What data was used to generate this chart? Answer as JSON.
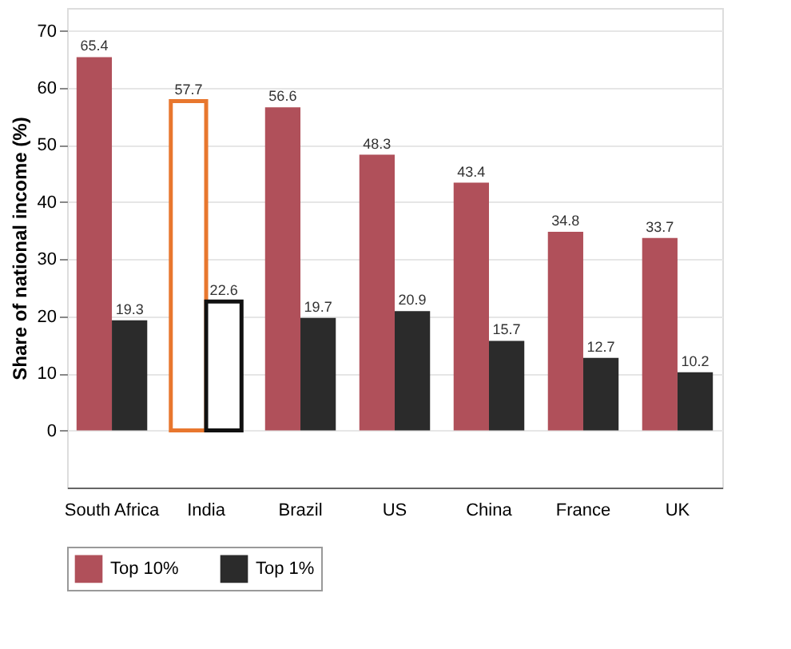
{
  "chart_data": {
    "type": "bar",
    "ylabel": "Share of national income (%)",
    "categories": [
      "South Africa",
      "India",
      "Brazil",
      "US",
      "China",
      "France",
      "UK"
    ],
    "series": [
      {
        "name": "Top 10%",
        "color": "#b0505a",
        "colors": [
          "#b0505a",
          "#e8772e",
          "#b0505a",
          "#b0505a",
          "#b0505a",
          "#b0505a",
          "#b0505a"
        ],
        "values": [
          65.4,
          57.7,
          56.6,
          48.3,
          43.4,
          34.8,
          33.7
        ]
      },
      {
        "name": "Top 1%",
        "color": "#2b2b2b",
        "colors": [
          "#2b2b2b",
          "#111111",
          "#2b2b2b",
          "#2b2b2b",
          "#2b2b2b",
          "#2b2b2b",
          "#2b2b2b"
        ],
        "values": [
          19.3,
          22.6,
          19.7,
          20.9,
          15.7,
          12.7,
          10.2
        ]
      }
    ],
    "ylim": [
      -10,
      74
    ],
    "yticks": [
      0,
      10,
      20,
      30,
      40,
      50,
      60,
      70
    ],
    "grid": "y",
    "legend": "bottom",
    "data_labels": true
  }
}
